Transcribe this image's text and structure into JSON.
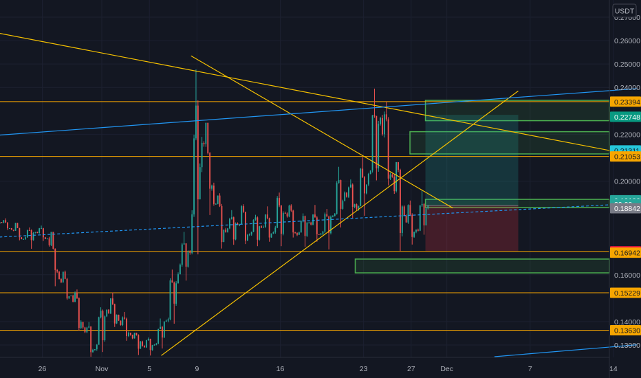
{
  "chart_data": {
    "type": "candlestick",
    "currency_label": "USDT",
    "y_axis": {
      "min": 0.125,
      "max": 0.275,
      "ticks": [
        {
          "v": 0.27,
          "label": "0.27000"
        },
        {
          "v": 0.26,
          "label": "0.26000"
        },
        {
          "v": 0.25,
          "label": "0.25000"
        },
        {
          "v": 0.24,
          "label": "0.24000"
        },
        {
          "v": 0.22,
          "label": "0.22000"
        },
        {
          "v": 0.2,
          "label": "0.20000"
        },
        {
          "v": 0.16,
          "label": "0.16000"
        },
        {
          "v": 0.14,
          "label": "0.14000"
        },
        {
          "v": 0.13,
          "label": "0.13000"
        }
      ]
    },
    "x_axis": {
      "ticks": [
        {
          "day": -4,
          "label": "26"
        },
        {
          "day": 1,
          "label": "Nov"
        },
        {
          "day": 5,
          "label": "5"
        },
        {
          "day": 9,
          "label": "9"
        },
        {
          "day": 16,
          "label": "16"
        },
        {
          "day": 23,
          "label": "23"
        },
        {
          "day": 27,
          "label": "27"
        },
        {
          "day": 30,
          "label": "Dec"
        },
        {
          "day": 37,
          "label": "7"
        },
        {
          "day": 44,
          "label": "14"
        }
      ]
    },
    "price_labels": [
      {
        "v": 0.23394,
        "label": "0.23394",
        "bg": "#f7a600",
        "fg": "#131722"
      },
      {
        "v": 0.22748,
        "label": "0.22748",
        "bg": "#089981",
        "fg": "#ffffff"
      },
      {
        "v": 0.21311,
        "label": "0.21311",
        "bg": "#26c6da",
        "fg": "#131722"
      },
      {
        "v": 0.21053,
        "label": "0.21053",
        "bg": "#f7a600",
        "fg": "#131722"
      },
      {
        "v": 0.19182,
        "label": "0.19182",
        "bg": "#26a69a",
        "fg": "#ffffff"
      },
      {
        "v": 0.1902,
        "label": "39:00",
        "bg": "#26a69a",
        "fg": "#ffffff"
      },
      {
        "v": 0.18842,
        "label": "0.18842",
        "bg": "#787b86",
        "fg": "#ffffff"
      },
      {
        "v": 0.17,
        "label": "0.17000",
        "bg": "#ff1744",
        "fg": "#ffffff"
      },
      {
        "v": 0.16942,
        "label": "0.16942",
        "bg": "#f7a600",
        "fg": "#131722"
      },
      {
        "v": 0.15229,
        "label": "0.15229",
        "bg": "#f7a600",
        "fg": "#131722"
      },
      {
        "v": 0.1363,
        "label": "0.13630",
        "bg": "#f7a600",
        "fg": "#131722"
      }
    ],
    "horizontal_levels": [
      0.23394,
      0.21053,
      0.17,
      0.15229,
      0.1363
    ],
    "trendlines": [
      {
        "points": [
          [
            -8,
            0.2635
          ],
          [
            46,
            0.2108
          ]
        ],
        "color": "#f7c200"
      },
      {
        "points": [
          [
            8.5,
            0.2535
          ],
          [
            30.5,
            0.1885
          ]
        ],
        "color": "#f7c200"
      },
      {
        "points": [
          [
            6,
            0.1255
          ],
          [
            36,
            0.2385
          ]
        ],
        "color": "#f7c200"
      },
      {
        "points": [
          [
            -8,
            0.2195
          ],
          [
            46,
            0.2395
          ]
        ],
        "color": "#2196f3"
      },
      {
        "points": [
          [
            -8,
            0.176
          ],
          [
            46,
            0.1905
          ]
        ],
        "color": "#2196f3",
        "dashed": true
      },
      {
        "points": [
          [
            34,
            0.125
          ],
          [
            46,
            0.1301
          ]
        ],
        "color": "#2196f3"
      }
    ],
    "zones": [
      {
        "from": 28.2,
        "to": 46,
        "low": 0.2258,
        "high": 0.2345
      },
      {
        "from": 26.9,
        "to": 46,
        "low": 0.2116,
        "high": 0.2211
      },
      {
        "from": 28.2,
        "to": 46,
        "low": 0.1887,
        "high": 0.1922
      },
      {
        "from": 22.3,
        "to": 46,
        "low": 0.1608,
        "high": 0.1667
      }
    ],
    "position": {
      "from": 28.2,
      "to": 36,
      "entry": 0.1896,
      "target": 0.2283,
      "stop": 0.17
    },
    "series": [
      {
        "day": -8,
        "o": 0.182,
        "h": 0.1862,
        "l": 0.1791,
        "c": 0.1825
      },
      {
        "day": -7,
        "o": 0.1825,
        "h": 0.1841,
        "l": 0.1791,
        "c": 0.1792
      },
      {
        "day": -6,
        "o": 0.1792,
        "h": 0.1822,
        "l": 0.1747,
        "c": 0.1753
      },
      {
        "day": -5,
        "o": 0.1753,
        "h": 0.1802,
        "l": 0.1711,
        "c": 0.1782
      },
      {
        "day": -4,
        "o": 0.1782,
        "h": 0.181,
        "l": 0.1744,
        "c": 0.1755
      },
      {
        "day": -3,
        "o": 0.1755,
        "h": 0.1783,
        "l": 0.1551,
        "c": 0.1582
      },
      {
        "day": -2,
        "o": 0.1582,
        "h": 0.1618,
        "l": 0.1493,
        "c": 0.1511
      },
      {
        "day": -1,
        "o": 0.1511,
        "h": 0.1537,
        "l": 0.1362,
        "c": 0.1375
      },
      {
        "day": 0,
        "o": 0.1375,
        "h": 0.1398,
        "l": 0.125,
        "c": 0.1282
      },
      {
        "day": 1,
        "o": 0.1282,
        "h": 0.1461,
        "l": 0.127,
        "c": 0.1451
      },
      {
        "day": 2,
        "o": 0.1451,
        "h": 0.1524,
        "l": 0.1377,
        "c": 0.1404
      },
      {
        "day": 3,
        "o": 0.1404,
        "h": 0.1441,
        "l": 0.1318,
        "c": 0.1344
      },
      {
        "day": 4,
        "o": 0.1344,
        "h": 0.1352,
        "l": 0.1257,
        "c": 0.1296
      },
      {
        "day": 5,
        "o": 0.1296,
        "h": 0.1332,
        "l": 0.1255,
        "c": 0.1301
      },
      {
        "day": 6,
        "o": 0.1301,
        "h": 0.1413,
        "l": 0.1285,
        "c": 0.1404
      },
      {
        "day": 7,
        "o": 0.1404,
        "h": 0.1622,
        "l": 0.1391,
        "c": 0.1602
      },
      {
        "day": 8,
        "o": 0.1602,
        "h": 0.1783,
        "l": 0.1575,
        "c": 0.1693
      },
      {
        "day": 9,
        "o": 0.1693,
        "h": 0.2477,
        "l": 0.1687,
        "c": 0.2163
      },
      {
        "day": 10,
        "o": 0.2163,
        "h": 0.2249,
        "l": 0.1855,
        "c": 0.1902
      },
      {
        "day": 11,
        "o": 0.1902,
        "h": 0.1948,
        "l": 0.1712,
        "c": 0.1782
      },
      {
        "day": 12,
        "o": 0.1782,
        "h": 0.1876,
        "l": 0.1728,
        "c": 0.1812
      },
      {
        "day": 13,
        "o": 0.1812,
        "h": 0.1901,
        "l": 0.1731,
        "c": 0.1772
      },
      {
        "day": 14,
        "o": 0.1772,
        "h": 0.1856,
        "l": 0.1722,
        "c": 0.1802
      },
      {
        "day": 15,
        "o": 0.1802,
        "h": 0.1892,
        "l": 0.1741,
        "c": 0.1781
      },
      {
        "day": 16,
        "o": 0.1781,
        "h": 0.1951,
        "l": 0.1722,
        "c": 0.1862
      },
      {
        "day": 17,
        "o": 0.1862,
        "h": 0.1901,
        "l": 0.1759,
        "c": 0.1771
      },
      {
        "day": 18,
        "o": 0.1771,
        "h": 0.1862,
        "l": 0.1719,
        "c": 0.1823
      },
      {
        "day": 19,
        "o": 0.1823,
        "h": 0.1898,
        "l": 0.1741,
        "c": 0.1775
      },
      {
        "day": 20,
        "o": 0.1775,
        "h": 0.1881,
        "l": 0.1708,
        "c": 0.1851
      },
      {
        "day": 21,
        "o": 0.1851,
        "h": 0.2061,
        "l": 0.1802,
        "c": 0.1951
      },
      {
        "day": 22,
        "o": 0.1951,
        "h": 0.2007,
        "l": 0.1841,
        "c": 0.1882
      },
      {
        "day": 23,
        "o": 0.1882,
        "h": 0.2102,
        "l": 0.1852,
        "c": 0.2031
      },
      {
        "day": 24,
        "o": 0.2031,
        "h": 0.2395,
        "l": 0.2003,
        "c": 0.2269
      },
      {
        "day": 25,
        "o": 0.2269,
        "h": 0.2338,
        "l": 0.1982,
        "c": 0.2018
      },
      {
        "day": 26,
        "o": 0.2018,
        "h": 0.2081,
        "l": 0.1701,
        "c": 0.1852
      },
      {
        "day": 27,
        "o": 0.1852,
        "h": 0.1917,
        "l": 0.1729,
        "c": 0.1792
      },
      {
        "day": 28,
        "o": 0.1792,
        "h": 0.1962,
        "l": 0.1771,
        "c": 0.1896
      }
    ]
  }
}
